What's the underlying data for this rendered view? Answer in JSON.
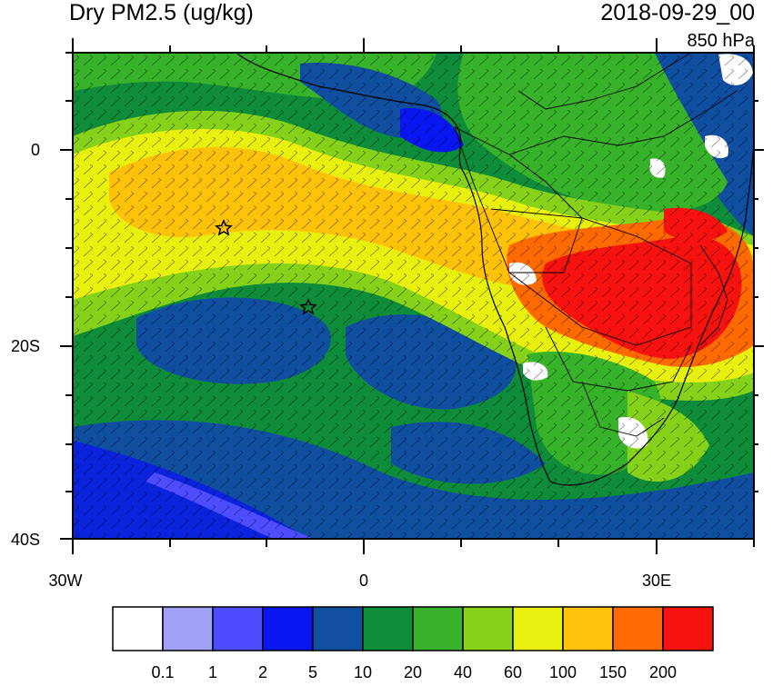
{
  "title_left": "Dry PM2.5 (ug/kg)",
  "title_right": "2018-09-29_00",
  "level": "850 hPa",
  "axes": {
    "lat_labels": [
      "0",
      "20S",
      "40S"
    ],
    "lon_labels": [
      "30W",
      "0",
      "30E"
    ]
  },
  "colorbar": {
    "labels": [
      "0.1",
      "1",
      "2",
      "5",
      "10",
      "20",
      "40",
      "60",
      "100",
      "150",
      "200"
    ],
    "colors": [
      "#ffffff",
      "#a0a0f5",
      "#4d4dff",
      "#0a16f2",
      "#104ea0",
      "#0f8c3a",
      "#38b22a",
      "#86d21a",
      "#e8f00f",
      "#ffc20a",
      "#ff6a00",
      "#f5120f"
    ]
  },
  "markers": [
    {
      "name": "star-marker-1",
      "lon": -14.5,
      "lat": -8
    },
    {
      "name": "star-marker-2",
      "lon": -5.8,
      "lat": -16
    }
  ],
  "colors": {
    "coastline": "#000000",
    "wind_barb": "#000000"
  }
}
